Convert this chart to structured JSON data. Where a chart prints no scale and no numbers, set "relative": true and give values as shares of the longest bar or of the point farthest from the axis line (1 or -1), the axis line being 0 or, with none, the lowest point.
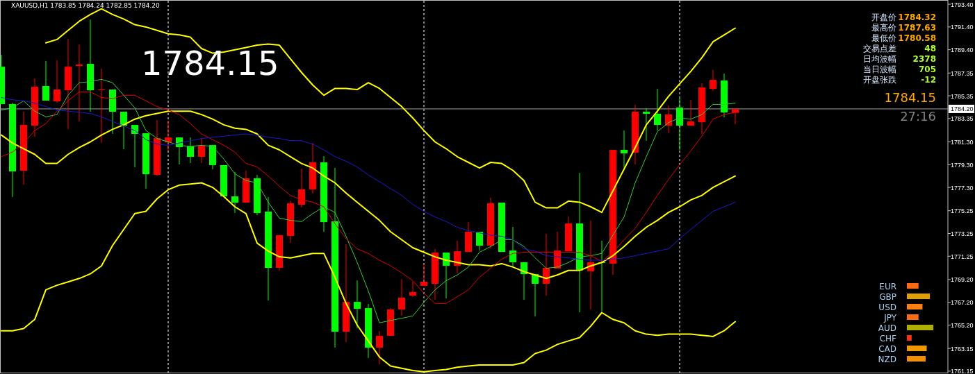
{
  "chart_data": [
    {
      "type": "candlestick",
      "title": "XAUUSD,H1  1783.85 1784.24 1782.85 1784.20",
      "categories": [
        null,
        null,
        null,
        null,
        null,
        null,
        null,
        null,
        null,
        null,
        null,
        null,
        null,
        null,
        null,
        null,
        null,
        null,
        null,
        null,
        null,
        null,
        null,
        null,
        null,
        null,
        null,
        null,
        null,
        null,
        null,
        null,
        null,
        null,
        null,
        null,
        null,
        null,
        null,
        null,
        null,
        null,
        null,
        null,
        null,
        null,
        null,
        null,
        null,
        null,
        null,
        null,
        null,
        null,
        null,
        null,
        null,
        null,
        null,
        null,
        null,
        null,
        null,
        null,
        null,
        null,
        null
      ],
      "ohlc": [
        [
          1787.91,
          1788.95,
          1784.62,
          1784.62
        ],
        [
          1784.62,
          1784.74,
          1776.45,
          1778.71
        ],
        [
          1778.77,
          1783.95,
          1777.55,
          1782.79
        ],
        [
          1782.73,
          1786.88,
          1781.75,
          1786.14
        ],
        [
          1786.21,
          1788.4,
          1784.93,
          1784.93
        ],
        [
          1784.86,
          1788.46,
          1784.74,
          1785.9
        ],
        [
          1785.84,
          1790.35,
          1782.43,
          1787.91
        ],
        [
          1787.97,
          1789.86,
          1783.1,
          1788.1
        ],
        [
          1788.16,
          1792.06,
          1783.95,
          1785.84
        ],
        [
          1785.84,
          1787.73,
          1781.21,
          1785.9
        ],
        [
          1785.9,
          1785.9,
          1782.0,
          1783.95
        ],
        [
          1783.95,
          1783.95,
          1780.66,
          1782.73
        ],
        [
          1782.79,
          1782.79,
          1779.07,
          1782.0
        ],
        [
          1782.06,
          1782.06,
          1777.19,
          1778.46
        ],
        [
          1778.4,
          1783.22,
          1778.28,
          1781.63
        ],
        [
          1781.27,
          1783.16,
          1780.53,
          1781.69
        ],
        [
          1781.69,
          1781.69,
          1779.32,
          1780.84
        ],
        [
          1780.9,
          1781.69,
          1779.44,
          1779.99
        ],
        [
          1779.99,
          1781.57,
          1779.44,
          1780.96
        ],
        [
          1781.02,
          1781.02,
          1778.89,
          1779.26
        ],
        [
          1779.26,
          1779.26,
          1776.51,
          1776.51
        ],
        [
          1776.51,
          1778.65,
          1775.05,
          1775.96
        ],
        [
          1775.96,
          1778.77,
          1775.96,
          1778.1
        ],
        [
          1778.1,
          1778.4,
          1774.86,
          1775.05
        ],
        [
          1775.17,
          1776.45,
          1767.36,
          1770.23
        ],
        [
          1770.23,
          1773.1,
          1769.99,
          1773.1
        ],
        [
          1773.03,
          1776.14,
          1772.42,
          1775.9
        ],
        [
          1775.78,
          1778.95,
          1775.53,
          1777.13
        ],
        [
          1777.13,
          1781.21,
          1776.75,
          1779.5
        ],
        [
          1779.5,
          1780.05,
          1773.4,
          1774.25
        ],
        [
          1774.32,
          1779.01,
          1763.22,
          1764.62
        ],
        [
          1764.62,
          1772.3,
          1763.7,
          1767.24
        ],
        [
          1767.24,
          1769.13,
          1764.92,
          1766.63
        ],
        [
          1766.69,
          1767.06,
          1762.3,
          1763.22
        ],
        [
          1763.22,
          1764.68,
          1761.75,
          1764.25
        ],
        [
          1764.25,
          1766.69,
          1764.25,
          1766.57
        ],
        [
          1766.57,
          1769.25,
          1766.02,
          1767.61
        ],
        [
          1767.79,
          1769.01,
          1767.67,
          1768.1
        ],
        [
          1768.64,
          1770.6,
          1768.64,
          1769.01
        ],
        [
          1768.83,
          1771.88,
          1767.43,
          1771.57
        ],
        [
          1771.57,
          1771.57,
          1767.55,
          1770.41
        ],
        [
          1770.41,
          1772.61,
          1769.74,
          1771.69
        ],
        [
          1771.63,
          1774.25,
          1771.63,
          1773.4
        ],
        [
          1773.4,
          1773.4,
          1771.75,
          1772.18
        ],
        [
          1772.18,
          1776.39,
          1771.94,
          1775.9
        ],
        [
          1775.96,
          1775.96,
          1771.63,
          1771.63
        ],
        [
          1771.75,
          1773.83,
          1770.29,
          1770.72
        ],
        [
          1770.72,
          1770.72,
          1767.43,
          1769.68
        ],
        [
          1769.68,
          1769.68,
          1765.96,
          1768.83
        ],
        [
          1768.83,
          1773.22,
          1767.79,
          1770.23
        ],
        [
          1770.17,
          1773.4,
          1770.17,
          1771.75
        ],
        [
          1771.69,
          1774.74,
          1771.69,
          1774.13
        ],
        [
          1774.13,
          1778.58,
          1766.33,
          1769.99
        ],
        [
          1769.93,
          1774.38,
          1766.57,
          1770.72
        ],
        [
          1770.72,
          1772.61,
          1766.39,
          1770.66
        ],
        [
          1770.6,
          1780.6,
          1769.62,
          1780.6
        ],
        [
          1780.6,
          1782.3,
          1779.01,
          1780.29
        ],
        [
          1780.35,
          1784.56,
          1779.32,
          1783.95
        ],
        [
          1783.95,
          1784.25,
          1781.39,
          1783.77
        ],
        [
          1783.77,
          1785.96,
          1782.3,
          1782.79
        ],
        [
          1782.73,
          1784.5,
          1782.06,
          1783.71
        ],
        [
          1784.32,
          1785.17,
          1780.58,
          1782.73
        ],
        [
          1782.73,
          1784.99,
          1782.73,
          1783.1
        ],
        [
          1783.03,
          1786.45,
          1782.0,
          1786.08
        ],
        [
          1785.96,
          1787.63,
          1785.78,
          1786.75
        ],
        [
          1786.69,
          1787.3,
          1783.46,
          1783.89
        ],
        [
          1783.85,
          1784.24,
          1782.85,
          1784.2
        ]
      ],
      "colors": [
        "#00ff00",
        "#00ff00",
        "#ff0000",
        "#ff0000",
        "#00ff00",
        "#ff0000",
        "#ff0000",
        "#ff0000",
        "#00ff00",
        "#ff0000",
        "#00ff00",
        "#00ff00",
        "#00ff00",
        "#00ff00",
        "#ff0000",
        "#ff0000",
        "#00ff00",
        "#00ff00",
        "#ff0000",
        "#00ff00",
        "#00ff00",
        "#00ff00",
        "#ff0000",
        "#00ff00",
        "#00ff00",
        "#ff0000",
        "#ff0000",
        "#ff0000",
        "#ff0000",
        "#00ff00",
        "#00ff00",
        "#ff0000",
        "#00ff00",
        "#00ff00",
        "#ff0000",
        "#ff0000",
        "#ff0000",
        "#ff0000",
        "#ff0000",
        "#ff0000",
        "#00ff00",
        "#ff0000",
        "#ff0000",
        "#00ff00",
        "#ff0000",
        "#00ff00",
        "#00ff00",
        "#00ff00",
        "#00ff00",
        "#ff0000",
        "#ff0000",
        "#ff0000",
        "#00ff00",
        "#ff0000",
        "#00ff00",
        "#ff0000",
        "#00ff00",
        "#ff0000",
        "#00ff00",
        "#00ff00",
        "#ff0000",
        "#00ff00",
        "#ff0000",
        "#ff0000",
        "#ff0000",
        "#00ff00",
        "#ff0000"
      ],
      "series": [
        {
          "type": "line",
          "color": "#ffff00",
          "values": [
            null,
            null,
            null,
            null,
            1790.0,
            1790.3,
            1791.1,
            1791.9,
            1792.5,
            1793.0,
            1792.5,
            1792.1,
            1791.6,
            1791.4,
            1791.1,
            1790.8,
            1790.7,
            1790.5,
            1789.5,
            1789.1,
            1789.2,
            1789.4,
            1789.6,
            1789.8,
            1789.9,
            1789.8,
            1788.6,
            1787.4,
            1786.3,
            1785.4,
            1786.0,
            1786.0,
            1785.9,
            1786.5,
            1786.0,
            1785.2,
            1784.4,
            1783.4,
            1782.3,
            1781.3,
            1780.7,
            1780.0,
            1779.5,
            1779.0,
            1779.5,
            1779.4,
            1778.8,
            1777.9,
            1776.0,
            1775.5,
            1775.5,
            1776.1,
            1776.0,
            1775.6,
            1775.1,
            1777.0,
            1778.9,
            1780.8,
            1782.8,
            1784.0,
            1785.3,
            1786.4,
            1787.5,
            1788.7,
            1790.1,
            1790.7,
            1791.3
          ]
        },
        {
          "type": "line",
          "color": "#ffff00",
          "values": [
            1781.9,
            1781.2,
            1780.7,
            1780.2,
            1779.4,
            1779.4,
            1780.2,
            1780.8,
            1781.3,
            1781.9,
            1782.4,
            1782.8,
            1783.3,
            1783.6,
            1783.8,
            1784.0,
            1784.0,
            1784.0,
            1783.7,
            1783.3,
            1782.8,
            1782.5,
            1782.4,
            1782.0,
            1781.0,
            1780.6,
            1780.0,
            1779.4,
            1779.0,
            1778.3,
            1777.7,
            1776.8,
            1776.0,
            1775.2,
            1774.4,
            1773.4,
            1772.7,
            1772.0,
            1771.6,
            1771.2,
            1770.9,
            1770.7,
            1770.5,
            1770.5,
            1770.4,
            1770.6,
            1770.3,
            1769.9,
            1769.6,
            1769.3,
            1769.6,
            1770.0,
            1770.0,
            1770.4,
            1770.7,
            1771.3,
            1772.1,
            1773.0,
            1773.8,
            1774.4,
            1775.1,
            1775.6,
            1776.2,
            1776.6,
            1777.3,
            1777.8,
            1778.3
          ]
        },
        {
          "type": "line",
          "color": "#ffff00",
          "values": [
            1764.7,
            1764.7,
            1764.9,
            1765.7,
            1768.3,
            1768.7,
            1769.0,
            1769.3,
            1769.7,
            1770.4,
            1772.2,
            1773.6,
            1775.0,
            1775.2,
            1776.3,
            1777.1,
            1777.5,
            1777.6,
            1777.7,
            1777.3,
            1776.5,
            1775.6,
            1775.0,
            1772.4,
            1771.7,
            1771.2,
            1771.1,
            1771.3,
            1771.5,
            1771.5,
            1769.4,
            1767.1,
            1765.2,
            1763.8,
            1762.4,
            1761.6,
            1761.4,
            1761.2,
            1761.1,
            1761.2,
            1761.3,
            1761.5,
            1761.6,
            1761.7,
            1761.7,
            1761.7,
            1761.7,
            1761.9,
            1762.7,
            1763.0,
            1763.5,
            1763.8,
            1764.1,
            1765.1,
            1766.3,
            1765.7,
            1765.4,
            1764.7,
            1764.4,
            1764.3,
            1764.4,
            1764.4,
            1764.4,
            1764.3,
            1764.2,
            1764.7,
            1765.5
          ]
        },
        {
          "type": "line",
          "color": "#32cd32",
          "values": [
            1784.1,
            1784.3,
            1784.9,
            1784.0,
            1783.5,
            1783.7,
            1785.4,
            1786.5,
            1786.6,
            1786.8,
            1786.5,
            1785.4,
            1784.3,
            1782.3,
            1781.6,
            1781.3,
            1781.0,
            1780.9,
            1781.0,
            1780.9,
            1779.8,
            1778.5,
            1777.9,
            1777.7,
            1776.0,
            1774.6,
            1774.4,
            1774.3,
            1775.0,
            1775.6,
            1775.1,
            1773.0,
            1770.7,
            1768.2,
            1765.4,
            1765.6,
            1765.8,
            1766.0,
            1767.2,
            1768.3,
            1769.1,
            1769.6,
            1770.3,
            1771.6,
            1772.1,
            1772.7,
            1772.7,
            1772.1,
            1771.1,
            1770.2,
            1770.3,
            1770.7,
            1771.2,
            1771.3,
            1771.5,
            1773.1,
            1774.7,
            1777.7,
            1780.0,
            1782.2,
            1783.0,
            1783.4,
            1783.3,
            1783.7,
            1784.6,
            1784.6,
            1784.7
          ]
        },
        {
          "type": "line",
          "color": "#e00000",
          "values": [
            1780.0,
            1780.4,
            1781.2,
            1782.3,
            1782.9,
            1784.0,
            1784.9,
            1785.7,
            1785.7,
            1785.2,
            1785.1,
            1785.4,
            1785.4,
            1784.9,
            1784.4,
            1784.1,
            1783.7,
            1782.9,
            1782.0,
            1781.5,
            1781.0,
            1780.4,
            1779.4,
            1779.1,
            1778.3,
            1777.4,
            1776.6,
            1776.2,
            1776.0,
            1775.6,
            1774.1,
            1772.8,
            1771.9,
            1771.5,
            1770.9,
            1770.4,
            1769.8,
            1769.1,
            1768.0,
            1767.1,
            1767.1,
            1767.7,
            1768.3,
            1769.4,
            1770.2,
            1771.0,
            1771.5,
            1771.6,
            1771.6,
            1771.6,
            1771.6,
            1771.6,
            1771.6,
            1771.3,
            1770.8,
            1771.6,
            1772.7,
            1773.7,
            1775.1,
            1776.6,
            1778.0,
            1779.3,
            1780.5,
            1781.8,
            1783.3,
            1783.7,
            1783.9
          ]
        },
        {
          "type": "line",
          "color": "#1a1ad0",
          "values": [
            1785.2,
            1785.0,
            1784.9,
            1784.7,
            1784.4,
            1784.1,
            1784.0,
            1783.9,
            1783.8,
            1783.5,
            1783.1,
            1782.7,
            1782.3,
            1781.5,
            1781.1,
            1781.0,
            1781.2,
            1781.4,
            1781.6,
            1781.7,
            1781.8,
            1781.9,
            1782.0,
            1781.9,
            1781.7,
            1781.6,
            1781.4,
            1781.4,
            1781.1,
            1780.6,
            1780.0,
            1779.6,
            1779.1,
            1778.4,
            1777.8,
            1777.2,
            1776.6,
            1775.8,
            1775.2,
            1774.7,
            1774.3,
            1773.8,
            1773.5,
            1773.3,
            1773.1,
            1773.0,
            1772.7,
            1771.9,
            1771.7,
            1771.3,
            1771.2,
            1771.1,
            1771.0,
            1770.9,
            1770.9,
            1771.0,
            1771.1,
            1771.3,
            1771.5,
            1771.7,
            1771.9,
            1772.8,
            1773.6,
            1774.4,
            1775.2,
            1775.6,
            1776.0
          ]
        }
      ],
      "ylim": [
        1760.9,
        1793.77
      ],
      "yticks": [
        {
          "value": 1793.4,
          "label": "1793.40"
        },
        {
          "value": 1791.4,
          "label": "1791.40"
        },
        {
          "value": 1789.4,
          "label": "1789.40"
        },
        1787.35,
        1785.35,
        1783.35,
        {
          "value": 1781.3,
          "label": "1781.30"
        },
        {
          "value": 1779.3,
          "label": "1779.30"
        },
        {
          "value": 1777.3,
          "label": "1777.30"
        },
        1775.25,
        1773.25,
        1771.25,
        {
          "value": 1769.2,
          "label": "1769.20"
        },
        {
          "value": 1767.2,
          "label": "1767.20"
        },
        {
          "value": 1765.2,
          "label": "1765.20"
        },
        1763.15,
        1761.15
      ],
      "ref_lines": [
        {
          "axis": "y",
          "value": 1784.2,
          "label": "1784.20",
          "color": "#a0a0a0",
          "line_style": "solid"
        }
      ],
      "grid": "x",
      "annotations": [
        "1784.15"
      ]
    },
    {
      "type": "other",
      "annotations": [
        "开盘价 1784.32",
        "最高价 1787.63",
        "最低价 1780.58",
        "交易点差 48",
        "日均波幅 2378",
        "当日波幅 705",
        "开盘张跌 -12",
        "1784.15",
        "27:16"
      ],
      "colors": [
        "#ffa500",
        "#ffa500",
        "#ffa500",
        "#adff2f",
        "#adff2f",
        "#adff2f",
        "#adff2f",
        "#ffa500",
        "#808080"
      ]
    },
    {
      "type": "bar",
      "orientation": "horizontal",
      "relative": true,
      "categories": [
        "EUR",
        "GBP",
        "USD",
        "JPY",
        "AUD",
        "CHF",
        "CAD",
        "NZD"
      ],
      "values": [
        0.44,
        0.87,
        0.59,
        0.44,
        1,
        0.18,
        0.75,
        0.71
      ],
      "colors": [
        "#ff6a10",
        "#e0a000",
        "#ff8010",
        "#ff6a10",
        "#b0b000",
        "#ff3010",
        "#f09a00",
        "#f09000"
      ]
    }
  ]
}
